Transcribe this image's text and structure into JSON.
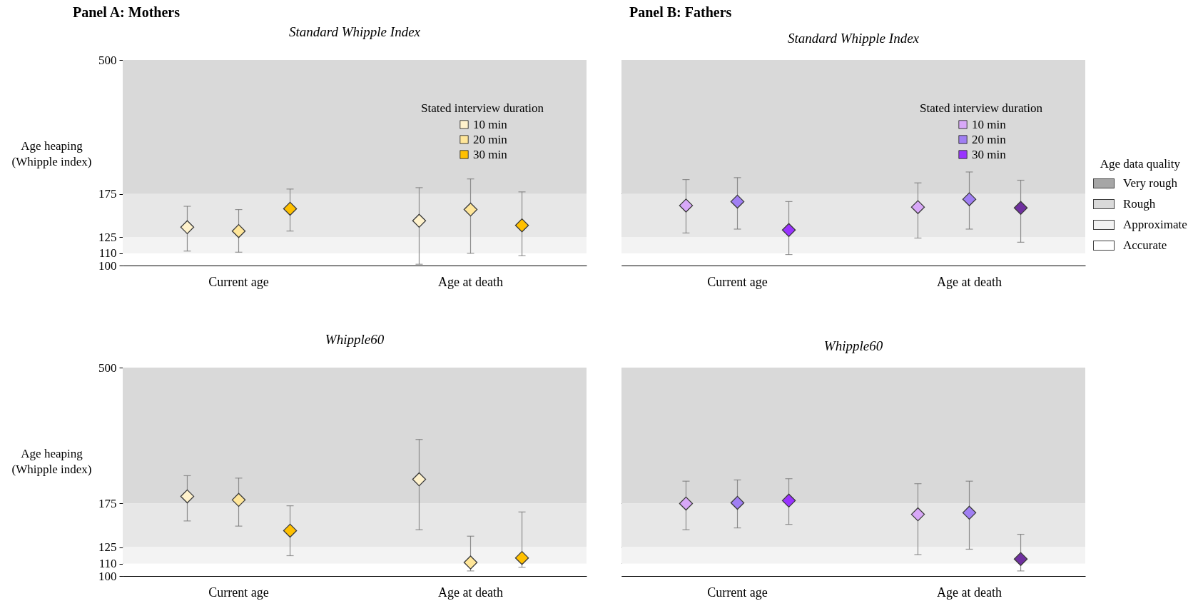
{
  "chart_data": [
    {
      "type": "scatter",
      "title": "Panel A: Mothers",
      "subtitle": "Standard Whipple Index",
      "ylabel": "Age heaping (Whipple index)",
      "categories": [
        "Current age",
        "Age at death"
      ],
      "log": "y",
      "ylim": [
        100,
        500
      ],
      "yticks": [
        100,
        110,
        125,
        175,
        500
      ],
      "marker": "diamond",
      "legend": "top right",
      "legend_title": "Stated interview duration",
      "bands": [
        {
          "axis": "y",
          "from": 175,
          "to": 500,
          "color": "#d9d9d9"
        },
        {
          "axis": "y",
          "from": 125,
          "to": 175,
          "color": "#e7e7e7"
        },
        {
          "axis": "y",
          "from": 110,
          "to": 125,
          "color": "#f3f3f3"
        },
        {
          "axis": "y",
          "from": 100,
          "to": 110,
          "color": "#ffffff"
        }
      ],
      "series": [
        {
          "name": "10 min",
          "color": "#fff2cc",
          "values": [
            135,
            142
          ],
          "errors": [
            [
              112,
              159
            ],
            [
              101,
              184
            ]
          ]
        },
        {
          "name": "20 min",
          "color": "#ffe699",
          "values": [
            131,
            155
          ],
          "errors": [
            [
              111,
              155
            ],
            [
              110,
              197
            ]
          ]
        },
        {
          "name": "30 min",
          "color": "#ffc000",
          "values": [
            156,
            137
          ],
          "errors": [
            [
              131,
              182
            ],
            [
              108,
              178
            ]
          ]
        }
      ]
    },
    {
      "type": "scatter",
      "title": "Panel B: Fathers",
      "subtitle": "Standard Whipple Index",
      "categories": [
        "Current age",
        "Age at death"
      ],
      "log": "y",
      "ylim": [
        100,
        500
      ],
      "yticks": [
        100,
        110,
        125,
        175,
        500
      ],
      "tick_labels": "x",
      "marker": "diamond",
      "legend": "top right",
      "legend_title": "Stated interview duration",
      "bands": [
        {
          "axis": "y",
          "from": 175,
          "to": 500,
          "color": "#d9d9d9"
        },
        {
          "axis": "y",
          "from": 125,
          "to": 175,
          "color": "#e7e7e7"
        },
        {
          "axis": "y",
          "from": 110,
          "to": 125,
          "color": "#f3f3f3"
        },
        {
          "axis": "y",
          "from": 100,
          "to": 110,
          "color": "#ffffff"
        }
      ],
      "series": [
        {
          "name": "10 min",
          "color": "#d8a8f8",
          "values": [
            160,
            158
          ],
          "errors": [
            [
              129,
              196
            ],
            [
              124,
              191
            ]
          ]
        },
        {
          "name": "20 min",
          "color": "#a07ff3",
          "values": [
            165,
            168
          ],
          "errors": [
            [
              133,
              199
            ],
            [
              133,
              208
            ]
          ]
        },
        {
          "name": "30 min",
          "color": "#9933ff",
          "colors": [
            "#9933ff",
            "#7030a0"
          ],
          "values": [
            132,
            157
          ],
          "errors": [
            [
              109,
              165
            ],
            [
              120,
              195
            ]
          ]
        }
      ]
    },
    {
      "type": "scatter",
      "subtitle": "Whipple60",
      "ylabel": "Age heaping (Whipple index)",
      "categories": [
        "Current age",
        "Age at death"
      ],
      "log": "y",
      "ylim": [
        100,
        500
      ],
      "yticks": [
        100,
        110,
        125,
        175,
        500
      ],
      "marker": "diamond",
      "bands": [
        {
          "axis": "y",
          "from": 175,
          "to": 500,
          "color": "#d9d9d9"
        },
        {
          "axis": "y",
          "from": 125,
          "to": 175,
          "color": "#e7e7e7"
        },
        {
          "axis": "y",
          "from": 110,
          "to": 125,
          "color": "#f3f3f3"
        },
        {
          "axis": "y",
          "from": 100,
          "to": 110,
          "color": "#ffffff"
        }
      ],
      "series": [
        {
          "color": "#fff2cc",
          "values": [
            185,
            211
          ],
          "errors": [
            [
              153,
              217
            ],
            [
              143,
              287
            ]
          ]
        },
        {
          "color": "#ffe699",
          "values": [
            180,
            111
          ],
          "errors": [
            [
              147,
              213
            ],
            [
              104,
              136
            ]
          ]
        },
        {
          "color": "#ffc000",
          "values": [
            142,
            115
          ],
          "errors": [
            [
              117,
              172
            ],
            [
              107,
              164
            ]
          ]
        }
      ]
    },
    {
      "type": "scatter",
      "subtitle": "Whipple60",
      "categories": [
        "Current age",
        "Age at death"
      ],
      "log": "y",
      "ylim": [
        100,
        500
      ],
      "yticks": [
        100,
        110,
        125,
        175,
        500
      ],
      "tick_labels": "x",
      "marker": "diamond",
      "bands": [
        {
          "axis": "y",
          "from": 175,
          "to": 500,
          "color": "#d9d9d9"
        },
        {
          "axis": "y",
          "from": 125,
          "to": 175,
          "color": "#e7e7e7"
        },
        {
          "axis": "y",
          "from": 110,
          "to": 125,
          "color": "#f3f3f3"
        },
        {
          "axis": "y",
          "from": 100,
          "to": 110,
          "color": "#ffffff"
        }
      ],
      "series": [
        {
          "color": "#d8a8f8",
          "values": [
            175,
            161
          ],
          "errors": [
            [
              143,
              208
            ],
            [
              118,
              204
            ]
          ]
        },
        {
          "color": "#a07ff3",
          "values": [
            176,
            163
          ],
          "errors": [
            [
              145,
              210
            ],
            [
              123,
              208
            ]
          ]
        },
        {
          "color": "#9933ff",
          "colors": [
            "#9933ff",
            "#7030a0"
          ],
          "values": [
            179,
            114
          ],
          "errors": [
            [
              149,
              212
            ],
            [
              104,
              138
            ]
          ]
        }
      ]
    },
    {
      "type": "other",
      "title": "Age data quality",
      "categories": [
        "Very rough",
        "Rough",
        "Approximate",
        "Accurate"
      ],
      "colors": [
        "#a6a6a6",
        "#d9d9d9",
        "#f2f2f2",
        "#ffffff"
      ]
    }
  ]
}
